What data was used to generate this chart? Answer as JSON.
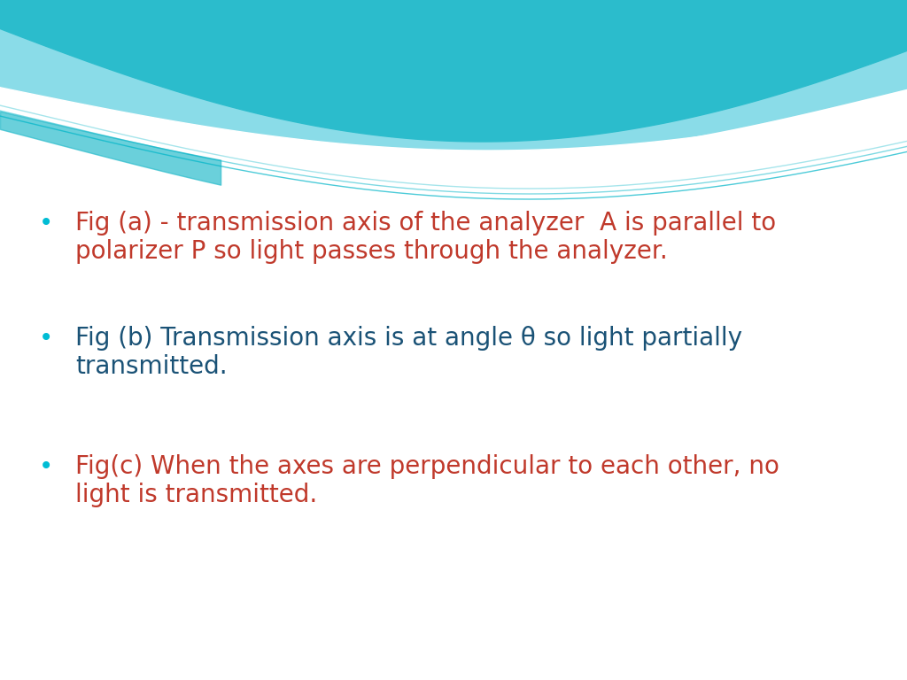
{
  "bullet_color": "#00BCD4",
  "text_color_red": "#C0392B",
  "text_color_blue": "#1A5276",
  "background_color": "#FFFFFF",
  "bullet1_line1": "Fig (a) - transmission axis of the analyzer  A is parallel to",
  "bullet1_line2": "polarizer P so light passes through the analyzer.",
  "bullet2_line1": "Fig (b) Transmission axis is at angle θ so light partially",
  "bullet2_line2": "transmitted.",
  "bullet3_line1": "Fig(c) When the axes are perpendicular to each other, no",
  "bullet3_line2": "light is transmitted.",
  "font_size": 20,
  "wave_color_light": "#8ADCE8",
  "wave_color_main": "#2BBCCC",
  "wave_color_dark": "#1AAABB",
  "wave_line_color": "#00B5C8",
  "white": "#FFFFFF"
}
